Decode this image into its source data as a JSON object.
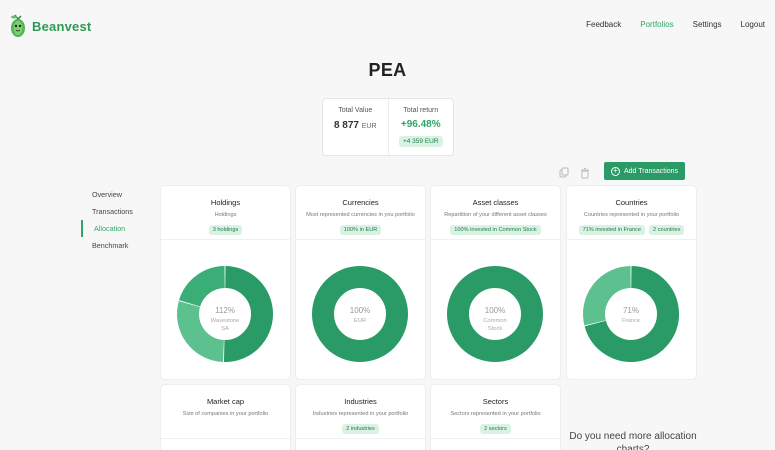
{
  "brand": {
    "name": "Beanvest"
  },
  "nav": {
    "feedback": "Feedback",
    "portfolios": "Portfolios",
    "settings": "Settings",
    "logout": "Logout"
  },
  "page": {
    "title": "PEA"
  },
  "summary": {
    "value_label": "Total Value",
    "value": "8 877",
    "value_unit": "EUR",
    "return_label": "Total return",
    "return_pct": "+96.48%",
    "return_abs": "+4 359 EUR"
  },
  "toolbar": {
    "copy_icon": "copy-icon",
    "trash_icon": "trash-icon",
    "add_label": "Add Transactions"
  },
  "sidebar": {
    "items": [
      "Overview",
      "Transactions",
      "Allocation",
      "Benchmark"
    ],
    "active": "Allocation"
  },
  "cards": [
    {
      "title": "Holdings",
      "subtitle": "Holdings",
      "pills": [
        "3 holdings"
      ],
      "center_value": "112%",
      "center_label": "Wavestone SA",
      "slices": [
        {
          "fraction": 0.505,
          "color": "#2a9a66"
        },
        {
          "fraction": 0.29,
          "color": "#5cc08f"
        },
        {
          "fraction": 0.205,
          "color": "#3bae77"
        }
      ]
    },
    {
      "title": "Currencies",
      "subtitle": "Most represented currencies in you portfolio",
      "pills": [
        "100% in EUR"
      ],
      "center_value": "100%",
      "center_label": "EUR",
      "slices": [
        {
          "fraction": 1,
          "color": "#2a9a66"
        }
      ]
    },
    {
      "title": "Asset classes",
      "subtitle": "Repartition of your different asset classes",
      "pills": [
        "100% invested in Common Stock"
      ],
      "center_value": "100%",
      "center_label": "Common Stock",
      "slices": [
        {
          "fraction": 1,
          "color": "#2a9a66"
        }
      ]
    },
    {
      "title": "Countries",
      "subtitle": "Countries represented in your portfolio",
      "pills": [
        "71% invested in France",
        "2 countries"
      ],
      "center_value": "71%",
      "center_label": "France",
      "slices": [
        {
          "fraction": 0.71,
          "color": "#2a9a66"
        },
        {
          "fraction": 0.29,
          "color": "#5cc08f"
        }
      ]
    },
    {
      "title": "Market cap",
      "subtitle": "Size of companies in your portfolio",
      "pills": []
    },
    {
      "title": "Industries",
      "subtitle": "Industries represented in your portfolio",
      "pills": [
        "2 industries"
      ]
    },
    {
      "title": "Sectors",
      "subtitle": "Sectors represented in your portfolio",
      "pills": [
        "2 sectors"
      ]
    }
  ],
  "note": "Do you need more allocation charts?"
}
